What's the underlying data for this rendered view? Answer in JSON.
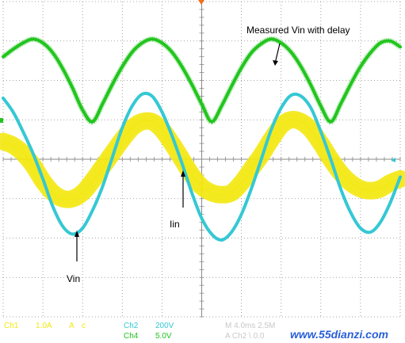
{
  "chart_data": {
    "type": "line",
    "title": "",
    "xlabel": "",
    "ylabel": "",
    "grid": true,
    "xlim": [
      0,
      10
    ],
    "ylim": [
      -4,
      4
    ],
    "series": [
      {
        "name": "Measured Vin with delay",
        "color": "#22c51e",
        "x": [
          0,
          0.25,
          0.5,
          0.75,
          1.0,
          1.25,
          1.5,
          1.75,
          2.0,
          2.25,
          2.5,
          2.75,
          3.0,
          3.25,
          3.5,
          3.75,
          4.0,
          4.25,
          4.5,
          4.75,
          5.0,
          5.25,
          5.5,
          5.75,
          6.0,
          6.25,
          6.5,
          6.75,
          7.0,
          7.25,
          7.5,
          7.75,
          8.0,
          8.25,
          8.5,
          8.75,
          9.0,
          9.25,
          9.5,
          9.75,
          10.0
        ],
        "values": [
          2.6,
          2.79,
          2.95,
          3.05,
          2.95,
          2.7,
          2.3,
          1.8,
          1.25,
          0.95,
          1.4,
          1.9,
          2.35,
          2.72,
          2.95,
          3.05,
          2.95,
          2.72,
          2.35,
          1.9,
          1.4,
          0.95,
          1.35,
          1.85,
          2.32,
          2.7,
          2.93,
          3.05,
          2.95,
          2.72,
          2.35,
          1.88,
          1.35,
          0.95,
          1.4,
          1.9,
          2.35,
          2.7,
          2.95,
          3.0,
          2.85
        ]
      },
      {
        "name": "Vin",
        "color": "#35c8d4",
        "x": [
          0,
          0.25,
          0.5,
          0.75,
          1.0,
          1.25,
          1.5,
          1.75,
          2.0,
          2.25,
          2.5,
          2.75,
          3.0,
          3.25,
          3.5,
          3.75,
          4.0,
          4.25,
          4.5,
          4.75,
          5.0,
          5.25,
          5.5,
          5.75,
          6.0,
          6.25,
          6.5,
          6.75,
          7.0,
          7.25,
          7.5,
          7.75,
          8.0,
          8.25,
          8.5,
          8.75,
          9.0,
          9.25,
          9.5,
          9.75,
          10.0
        ],
        "values": [
          1.55,
          1.2,
          0.7,
          0.15,
          -0.5,
          -1.2,
          -1.7,
          -1.9,
          -1.75,
          -1.3,
          -0.7,
          0.05,
          0.8,
          1.35,
          1.65,
          1.6,
          1.2,
          0.6,
          -0.1,
          -0.85,
          -1.5,
          -1.9,
          -2.05,
          -1.85,
          -1.4,
          -0.75,
          0.0,
          0.75,
          1.3,
          1.62,
          1.6,
          1.3,
          0.7,
          0.0,
          -0.75,
          -1.35,
          -1.75,
          -1.85,
          -1.6,
          -1.1,
          -0.45
        ]
      },
      {
        "name": "Iin",
        "color": "#f3e80f",
        "x": [
          0,
          0.25,
          0.5,
          0.75,
          1.0,
          1.25,
          1.5,
          1.75,
          2.0,
          2.25,
          2.5,
          2.75,
          3.0,
          3.25,
          3.5,
          3.75,
          4.0,
          4.25,
          4.5,
          4.75,
          5.0,
          5.25,
          5.5,
          5.75,
          6.0,
          6.25,
          6.5,
          6.75,
          7.0,
          7.25,
          7.5,
          7.75,
          8.0,
          8.25,
          8.5,
          8.75,
          9.0,
          9.25,
          9.5,
          9.75,
          10.0
        ],
        "values": [
          0.45,
          0.35,
          0.15,
          -0.15,
          -0.55,
          -0.85,
          -1.0,
          -1.0,
          -0.85,
          -0.55,
          -0.2,
          0.15,
          0.5,
          0.8,
          0.95,
          0.95,
          0.75,
          0.4,
          0.0,
          -0.4,
          -0.7,
          -0.85,
          -0.9,
          -0.85,
          -0.6,
          -0.25,
          0.1,
          0.5,
          0.85,
          1.0,
          0.95,
          0.75,
          0.4,
          0.0,
          -0.35,
          -0.6,
          -0.75,
          -0.8,
          -0.75,
          -0.6,
          -0.5
        ]
      }
    ],
    "annotations": [
      {
        "text": "Measured Vin with delay",
        "target": "Measured Vin with delay"
      },
      {
        "text": "Vin",
        "target": "Vin"
      },
      {
        "text": "Iin",
        "target": "Iin"
      }
    ]
  },
  "status": {
    "ch1_label": "Ch1",
    "ch1_scale": "1.0A",
    "ch1_unit": "A",
    "ch1_coupling": "c",
    "ch2_label": "Ch2",
    "ch2_scale": "200V",
    "ch4_label": "Ch4",
    "ch4_scale": "5.0V",
    "timebase": "M 4.0ms 2.5M",
    "trigger": "A  Ch2  \\  0.0",
    "watermark": "www.55dianzi.com"
  },
  "colors": {
    "background": "#ffffff",
    "grid": "#8a8a8a",
    "ch1": "#f3e80f",
    "ch2": "#35c8d4",
    "ch4": "#22c51e",
    "trigger_marker": "#f07020",
    "text": "#000000"
  }
}
